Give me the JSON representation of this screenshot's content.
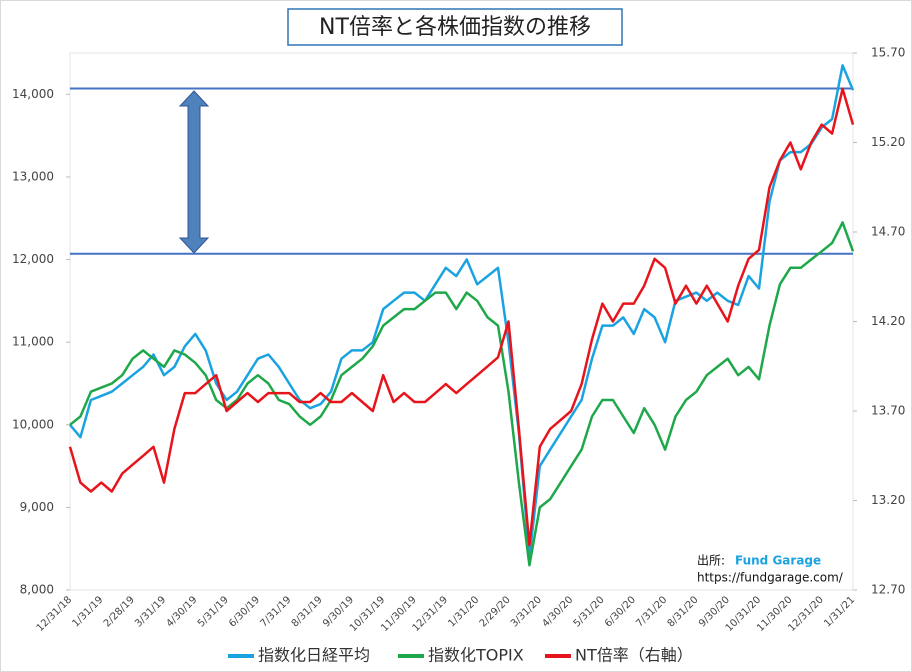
{
  "chart_data": {
    "type": "line",
    "title": "NT倍率と各株価指数の推移",
    "categories": [
      "12/31/18",
      null,
      null,
      "1/31/19",
      null,
      null,
      "2/28/19",
      null,
      null,
      "3/31/19",
      null,
      null,
      "4/30/19",
      null,
      null,
      "5/31/19",
      null,
      null,
      "6/30/19",
      null,
      null,
      "7/31/19",
      null,
      null,
      "8/31/19",
      null,
      null,
      "9/30/19",
      null,
      null,
      "10/31/19",
      null,
      null,
      "11/30/19",
      null,
      null,
      "12/31/19",
      null,
      null,
      "1/31/20",
      null,
      null,
      "2/29/20",
      null,
      null,
      "3/31/20",
      null,
      null,
      "4/30/20",
      null,
      null,
      "5/31/20",
      null,
      null,
      "6/30/20",
      null,
      null,
      "7/31/20",
      null,
      null,
      "8/31/20",
      null,
      null,
      "9/30/20",
      null,
      null,
      "10/31/20",
      null,
      null,
      "11/30/20",
      null,
      null,
      "12/31/20",
      null,
      null,
      "1/31/21"
    ],
    "series": [
      {
        "name": "指数化日経平均",
        "color": "#1aa3e0",
        "values": [
          10000,
          9850,
          10300,
          10350,
          10400,
          10500,
          10600,
          10700,
          10850,
          10600,
          10700,
          10950,
          11100,
          10900,
          10500,
          10300,
          10400,
          10600,
          10800,
          10850,
          10700,
          10500,
          10300,
          10200,
          10250,
          10400,
          10800,
          10900,
          10900,
          11000,
          11400,
          11500,
          11600,
          11600,
          11500,
          11700,
          11900,
          11800,
          12000,
          11700,
          11800,
          11900,
          11000,
          9900,
          8400,
          9500,
          9700,
          9900,
          10100,
          10300,
          10800,
          11200,
          11200,
          11300,
          11100,
          11400,
          11300,
          11000,
          11500,
          11550,
          11600,
          11500,
          11600,
          11500,
          11450,
          11800,
          11650,
          12700,
          13200,
          13300,
          13300,
          13400,
          13600,
          13700,
          14350,
          14050
        ]
      },
      {
        "name": "指数化TOPIX",
        "color": "#1fa84a",
        "values": [
          10000,
          10100,
          10400,
          10450,
          10500,
          10600,
          10800,
          10900,
          10800,
          10700,
          10900,
          10850,
          10750,
          10600,
          10300,
          10200,
          10300,
          10500,
          10600,
          10500,
          10300,
          10250,
          10100,
          10000,
          10100,
          10300,
          10600,
          10700,
          10800,
          10950,
          11200,
          11300,
          11400,
          11400,
          11500,
          11600,
          11600,
          11400,
          11600,
          11500,
          11300,
          11200,
          10400,
          9300,
          8300,
          9000,
          9100,
          9300,
          9500,
          9700,
          10100,
          10300,
          10300,
          10100,
          9900,
          10200,
          10000,
          9700,
          10100,
          10300,
          10400,
          10600,
          10700,
          10800,
          10600,
          10700,
          10550,
          11200,
          11700,
          11900,
          11900,
          12000,
          12100,
          12200,
          12450,
          12100
        ]
      },
      {
        "name": "NT倍率（右軸）",
        "color": "#e8141b",
        "axis": "y2",
        "values": [
          13.5,
          13.3,
          13.25,
          13.3,
          13.25,
          13.35,
          13.4,
          13.45,
          13.5,
          13.3,
          13.6,
          13.8,
          13.8,
          13.85,
          13.9,
          13.7,
          13.75,
          13.8,
          13.75,
          13.8,
          13.8,
          13.8,
          13.75,
          13.75,
          13.8,
          13.75,
          13.75,
          13.8,
          13.75,
          13.7,
          13.9,
          13.75,
          13.8,
          13.75,
          13.75,
          13.8,
          13.85,
          13.8,
          13.85,
          13.9,
          13.95,
          14.0,
          14.2,
          13.6,
          12.95,
          13.5,
          13.6,
          13.65,
          13.7,
          13.85,
          14.1,
          14.3,
          14.2,
          14.3,
          14.3,
          14.4,
          14.55,
          14.5,
          14.3,
          14.4,
          14.3,
          14.4,
          14.3,
          14.2,
          14.4,
          14.55,
          14.6,
          14.95,
          15.1,
          15.2,
          15.05,
          15.2,
          15.3,
          15.25,
          15.5,
          15.3
        ]
      }
    ],
    "ylim": [
      8000,
      14500
    ],
    "yticks": [
      {
        "value": 8000,
        "label": "8,000"
      },
      {
        "value": 9000,
        "label": "9,000"
      },
      {
        "value": 10000,
        "label": "10,000"
      },
      {
        "value": 11000,
        "label": "11,000"
      },
      {
        "value": 12000,
        "label": "12,000"
      },
      {
        "value": 13000,
        "label": "13,000"
      },
      {
        "value": 14000,
        "label": "14,000"
      }
    ],
    "y2lim": [
      12.7,
      15.7
    ],
    "y2ticks": [
      {
        "value": 12.7,
        "label": "12.70"
      },
      {
        "value": 13.2,
        "label": "13.20"
      },
      {
        "value": 13.7,
        "label": "13.70"
      },
      {
        "value": 14.2,
        "label": "14.20"
      },
      {
        "value": 14.7,
        "label": "14.70"
      },
      {
        "value": 15.2,
        "label": "15.20"
      },
      {
        "value": 15.7,
        "label": "15.70"
      }
    ],
    "reference_lines": {
      "color": "#4472c4",
      "values": [
        14070,
        12070
      ]
    },
    "annotations": {
      "source_label": "出所:",
      "source_name": "Fund Garage",
      "source_url": "https://fundgarage.com/"
    },
    "grid": false,
    "legend": "bottom"
  }
}
